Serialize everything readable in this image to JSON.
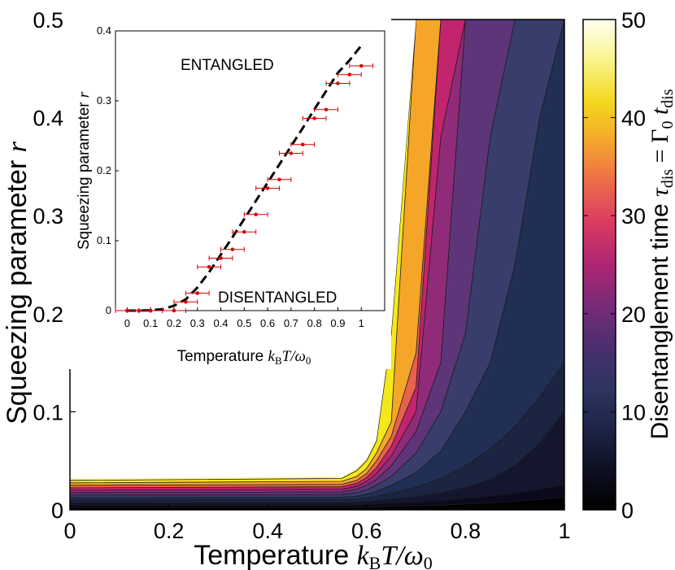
{
  "chart_data": [
    {
      "type": "contour",
      "xlabel_text": "Temperature ",
      "xlabel_math": "k_B T/ω_0",
      "ylabel_text": "Squeezing parameter ",
      "ylabel_math": "r",
      "xlim": [
        0,
        1
      ],
      "ylim": [
        0,
        0.5
      ],
      "xticks": [
        "0",
        "0.2",
        "0.4",
        "0.6",
        "0.8",
        "1"
      ],
      "yticks": [
        "0",
        "0.1",
        "0.2",
        "0.3",
        "0.4",
        "0.5"
      ],
      "x": [
        0,
        0.55,
        0.58,
        0.6,
        0.62,
        0.65,
        0.7,
        0.75,
        0.8,
        0.85,
        0.9,
        0.95,
        1.0
      ],
      "contour_levels": [
        {
          "level": 2.5,
          "color": "#0b0a1d",
          "r": [
            0.0025,
            0.0025,
            0.0026,
            0.0028,
            0.003,
            0.0034,
            0.004,
            0.0048,
            0.0058,
            0.007,
            0.0085,
            0.0105,
            0.013
          ]
        },
        {
          "level": 5,
          "color": "#14162d",
          "r": [
            0.005,
            0.005,
            0.0052,
            0.0056,
            0.006,
            0.007,
            0.008,
            0.0095,
            0.0115,
            0.014,
            0.017,
            0.021,
            0.026
          ]
        },
        {
          "level": 7.5,
          "color": "#1b2542",
          "r": [
            0.0075,
            0.0075,
            0.0079,
            0.0085,
            0.0093,
            0.0108,
            0.0135,
            0.0175,
            0.023,
            0.031,
            0.045,
            0.068,
            0.1
          ]
        },
        {
          "level": 10,
          "color": "#222f55",
          "r": [
            0.01,
            0.0102,
            0.011,
            0.0122,
            0.0138,
            0.017,
            0.023,
            0.032,
            0.045,
            0.062,
            0.085,
            0.115,
            0.15
          ]
        },
        {
          "level": 15,
          "color": "#393d6b",
          "r": [
            0.0125,
            0.0128,
            0.014,
            0.016,
            0.019,
            0.025,
            0.038,
            0.06,
            0.1,
            0.15,
            0.25,
            0.4,
            0.5
          ]
        },
        {
          "level": 20,
          "color": "#5e3578",
          "r": [
            0.015,
            0.0155,
            0.0175,
            0.0205,
            0.025,
            0.034,
            0.058,
            0.1,
            0.18,
            0.38,
            0.5,
            0.5,
            0.5
          ]
        },
        {
          "level": 25,
          "color": "#8f2b78",
          "r": [
            0.0175,
            0.0182,
            0.021,
            0.025,
            0.031,
            0.045,
            0.08,
            0.15,
            0.5,
            0.5,
            0.5,
            0.5,
            0.5
          ]
        },
        {
          "level": 30,
          "color": "#c2246e",
          "r": [
            0.02,
            0.021,
            0.024,
            0.029,
            0.037,
            0.055,
            0.1,
            0.38,
            0.5,
            0.5,
            0.5,
            0.5,
            0.5
          ]
        },
        {
          "level": 35,
          "color": "#e8624e",
          "r": [
            0.0225,
            0.0235,
            0.027,
            0.033,
            0.043,
            0.065,
            0.125,
            0.5,
            0.5,
            0.5,
            0.5,
            0.5,
            0.5
          ]
        },
        {
          "level": 40,
          "color": "#f5a628",
          "r": [
            0.025,
            0.026,
            0.03,
            0.037,
            0.05,
            0.075,
            0.16,
            0.5,
            0.5,
            0.5,
            0.5,
            0.5,
            0.5
          ]
        },
        {
          "level": 45,
          "color": "#f4e81a",
          "r": [
            0.0275,
            0.029,
            0.034,
            0.042,
            0.058,
            0.09,
            0.5,
            0.5,
            0.5,
            0.5,
            0.5,
            0.5,
            0.5
          ]
        },
        {
          "level": 50,
          "color": "#f8f4a2",
          "r": [
            0.03,
            0.032,
            0.04,
            0.05,
            0.07,
            0.18,
            0.5,
            0.5,
            0.5,
            0.5,
            0.5,
            0.5,
            0.5
          ]
        }
      ],
      "region_top_color": "#fdfde6",
      "colorbar": {
        "label_text": "Disentanglement time ",
        "label_math": "τ_dis = Γ_0 t_dis",
        "range": [
          0,
          50
        ],
        "ticks": [
          "0",
          "10",
          "20",
          "30",
          "40",
          "50"
        ],
        "colormap": [
          "#000000",
          "#0e1022",
          "#1d2447",
          "#2d3561",
          "#4a2f6e",
          "#7a2b78",
          "#ad2572",
          "#d93a62",
          "#ec6a4a",
          "#f5a52c",
          "#f3d81d",
          "#f8f48a",
          "#fffff2"
        ]
      }
    },
    {
      "type": "scatter",
      "title": "",
      "xlabel_text": "Temperature ",
      "xlabel_math": "k_B T/ω_0",
      "ylabel_text": "Squeezing parameter ",
      "ylabel_math": "r",
      "xlim": [
        -0.05,
        1.1
      ],
      "ylim": [
        0,
        0.4
      ],
      "xticks": [
        "0",
        "0.1",
        "0.2",
        "0.3",
        "0.4",
        "0.5",
        "0.6",
        "0.7",
        "0.8",
        "0.9",
        "1"
      ],
      "yticks": [
        "0",
        "0.1",
        "0.2",
        "0.3",
        "0.4"
      ],
      "annotations": [
        "ENTANGLED",
        "DISENTANGLED"
      ],
      "marker_color": "#dd0000",
      "points": [
        {
          "x": 0.0,
          "y": 0.0,
          "xerr": 0.05
        },
        {
          "x": 0.05,
          "y": 0.0,
          "xerr": 0.05
        },
        {
          "x": 0.1,
          "y": 0.0,
          "xerr": 0.05
        },
        {
          "x": 0.2,
          "y": 0.0,
          "xerr": 0.05
        },
        {
          "x": 0.25,
          "y": 0.0125,
          "xerr": 0.05
        },
        {
          "x": 0.3,
          "y": 0.025,
          "xerr": 0.05
        },
        {
          "x": 0.35,
          "y": 0.0625,
          "xerr": 0.05
        },
        {
          "x": 0.4,
          "y": 0.075,
          "xerr": 0.05
        },
        {
          "x": 0.45,
          "y": 0.0875,
          "xerr": 0.05
        },
        {
          "x": 0.5,
          "y": 0.1125,
          "xerr": 0.05
        },
        {
          "x": 0.55,
          "y": 0.1375,
          "xerr": 0.05
        },
        {
          "x": 0.6,
          "y": 0.175,
          "xerr": 0.05
        },
        {
          "x": 0.65,
          "y": 0.1875,
          "xerr": 0.05
        },
        {
          "x": 0.7,
          "y": 0.225,
          "xerr": 0.05
        },
        {
          "x": 0.75,
          "y": 0.2375,
          "xerr": 0.05
        },
        {
          "x": 0.8,
          "y": 0.275,
          "xerr": 0.05
        },
        {
          "x": 0.85,
          "y": 0.2875,
          "xerr": 0.05
        },
        {
          "x": 0.9,
          "y": 0.325,
          "xerr": 0.05
        },
        {
          "x": 0.95,
          "y": 0.3375,
          "xerr": 0.05
        },
        {
          "x": 1.0,
          "y": 0.35,
          "xerr": 0.05
        }
      ],
      "fit_line": {
        "style": "dashed",
        "color": "#000000",
        "x": [
          0.0,
          0.05,
          0.1,
          0.15,
          0.2,
          0.25,
          0.3,
          0.35,
          0.4,
          0.45,
          0.5,
          0.55,
          0.6,
          0.65,
          0.7,
          0.75,
          0.8,
          0.85,
          0.9,
          0.95,
          1.0
        ],
        "y": [
          0.0,
          0.0,
          0.0005,
          0.002,
          0.007,
          0.016,
          0.033,
          0.055,
          0.08,
          0.105,
          0.131,
          0.157,
          0.183,
          0.209,
          0.235,
          0.261,
          0.288,
          0.314,
          0.34,
          0.358,
          0.379
        ]
      }
    }
  ]
}
